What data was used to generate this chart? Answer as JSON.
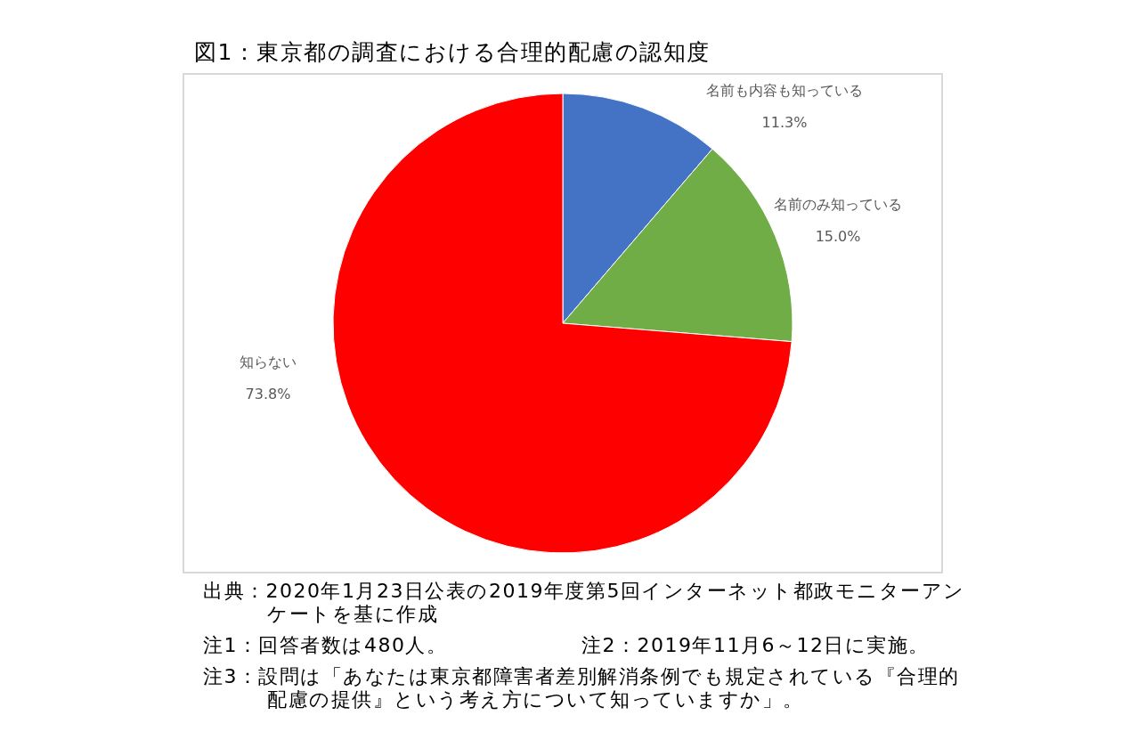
{
  "chart_data": {
    "type": "pie",
    "title": "図1：東京都の調査における合理的配慮の認知度",
    "categories": [
      "名前も内容も知っている",
      "名前のみ知っている",
      "知らない"
    ],
    "values": [
      11.3,
      15.0,
      73.8
    ],
    "colors": [
      "#4472c4",
      "#70ad47",
      "#ff0000"
    ],
    "value_labels": [
      "11.3%",
      "15.0%",
      "73.8%"
    ],
    "legend": false,
    "annotations": [
      "出典：2020年1月23日公表の2019年度第5回インターネット都政モニターアンケートを基に作成",
      "注1：回答者数は480人。",
      "注2：2019年11月6～12日に実施。",
      "注3：設問は「あなたは東京都障害者差別解消条例でも規定されている『合理的配慮の提供』という考え方について知っていますか」。"
    ]
  }
}
